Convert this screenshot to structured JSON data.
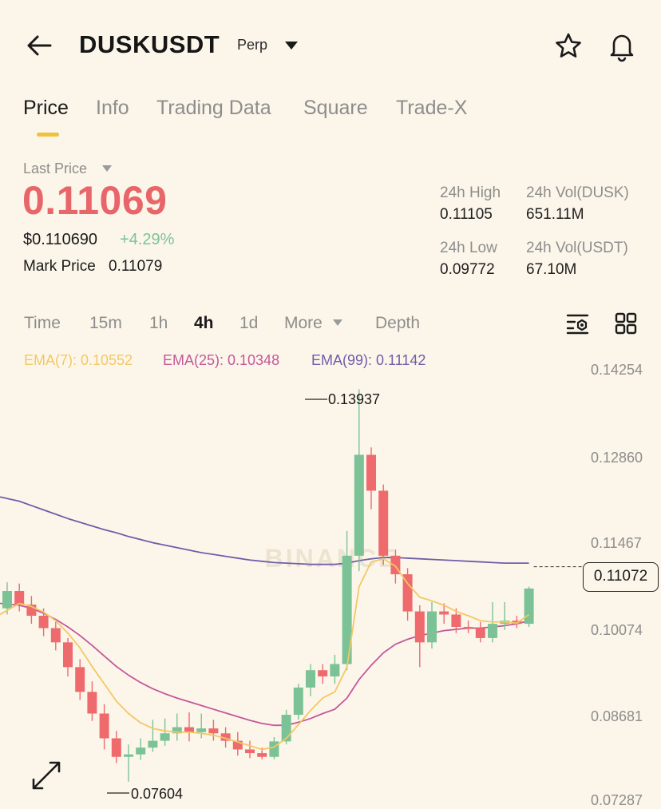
{
  "header": {
    "symbol": "DUSKUSDT",
    "contract_type": "Perp"
  },
  "tabs": [
    {
      "label": "Price",
      "active": true
    },
    {
      "label": "Info"
    },
    {
      "label": "Trading Data"
    },
    {
      "label": "Square"
    },
    {
      "label": "Trade-X"
    }
  ],
  "price": {
    "last_label": "Last Price",
    "last": "0.11069",
    "usd": "$0.110690",
    "change": "+4.29%",
    "mark_label": "Mark Price",
    "mark": "0.11079"
  },
  "stats": {
    "high_label": "24h High",
    "high": "0.11105",
    "vol_base_label": "24h Vol(DUSK)",
    "vol_base": "651.11M",
    "low_label": "24h Low",
    "low": "0.09772",
    "vol_quote_label": "24h Vol(USDT)",
    "vol_quote": "67.10M"
  },
  "timeframes": {
    "time": "Time",
    "m15": "15m",
    "h1": "1h",
    "h4": "4h",
    "d1": "1d",
    "more": "More",
    "depth": "Depth",
    "active": "4h"
  },
  "ema": {
    "ema7": "EMA(7): 0.10552",
    "ema25": "EMA(25): 0.10348",
    "ema99": "EMA(99): 0.11142"
  },
  "colors": {
    "up": "#7bc296",
    "down": "#ee6a6d",
    "accent": "#f0c13a",
    "ema7": "#f2c863",
    "ema25": "#c4579a",
    "ema99": "#6e5ea8"
  },
  "icons": [
    "back-arrow-icon",
    "dropdown-caret-icon",
    "star-icon",
    "bell-icon",
    "chart-settings-icon",
    "grid-layout-icon",
    "expand-icon"
  ],
  "chart_data": {
    "type": "candlestick",
    "y_ticks": [
      "0.14254",
      "0.12860",
      "0.11467",
      "0.10074",
      "0.08681",
      "0.07287"
    ],
    "ylim": [
      0.07287,
      0.14254
    ],
    "high_annotation": "0.13937",
    "low_annotation": "0.07604",
    "current_price": "0.11072",
    "candles": [
      [
        0.104,
        0.1068,
        0.1082,
        0.103
      ],
      [
        0.1068,
        0.1046,
        0.108,
        0.1035
      ],
      [
        0.1046,
        0.1028,
        0.106,
        0.1015
      ],
      [
        0.1028,
        0.1008,
        0.104,
        0.0995
      ],
      [
        0.1008,
        0.0985,
        0.1018,
        0.0972
      ],
      [
        0.0985,
        0.0945,
        0.0992,
        0.093
      ],
      [
        0.0945,
        0.0905,
        0.0958,
        0.0892
      ],
      [
        0.0905,
        0.087,
        0.0922,
        0.0858
      ],
      [
        0.087,
        0.083,
        0.0885,
        0.0812
      ],
      [
        0.083,
        0.08,
        0.0842,
        0.079
      ],
      [
        0.08,
        0.0804,
        0.082,
        0.076
      ],
      [
        0.0804,
        0.0815,
        0.083,
        0.0795
      ],
      [
        0.0815,
        0.0826,
        0.086,
        0.0808
      ],
      [
        0.0826,
        0.0838,
        0.0862,
        0.0818
      ],
      [
        0.0838,
        0.0848,
        0.087,
        0.0826
      ],
      [
        0.0848,
        0.084,
        0.0872,
        0.0825
      ],
      [
        0.084,
        0.0846,
        0.087,
        0.083
      ],
      [
        0.0846,
        0.0838,
        0.086,
        0.0826
      ],
      [
        0.0838,
        0.0826,
        0.0848,
        0.0815
      ],
      [
        0.0826,
        0.0812,
        0.084,
        0.0802
      ],
      [
        0.0812,
        0.0806,
        0.0826,
        0.0798
      ],
      [
        0.0806,
        0.08,
        0.0815,
        0.0796
      ],
      [
        0.08,
        0.0825,
        0.0832,
        0.0796
      ],
      [
        0.0825,
        0.0868,
        0.0876,
        0.082
      ],
      [
        0.0868,
        0.0912,
        0.0918,
        0.086
      ],
      [
        0.0912,
        0.094,
        0.095,
        0.0898
      ],
      [
        0.094,
        0.093,
        0.095,
        0.0918
      ],
      [
        0.093,
        0.095,
        0.0965,
        0.0918
      ],
      [
        0.095,
        0.1125,
        0.1165,
        0.094
      ],
      [
        0.1125,
        0.1288,
        0.1394,
        0.11
      ],
      [
        0.1288,
        0.123,
        0.13,
        0.12
      ],
      [
        0.123,
        0.1125,
        0.124,
        0.111
      ],
      [
        0.1125,
        0.1095,
        0.1135,
        0.108
      ],
      [
        0.1095,
        0.1035,
        0.1105,
        0.102
      ],
      [
        0.1035,
        0.0985,
        0.1045,
        0.0945
      ],
      [
        0.0985,
        0.1035,
        0.105,
        0.0975
      ],
      [
        0.1035,
        0.103,
        0.1048,
        0.1015
      ],
      [
        0.103,
        0.101,
        0.104,
        0.1
      ],
      [
        0.101,
        0.1008,
        0.102,
        0.1
      ],
      [
        0.1008,
        0.0992,
        0.1018,
        0.0985
      ],
      [
        0.0992,
        0.1015,
        0.105,
        0.0985
      ],
      [
        0.1015,
        0.102,
        0.105,
        0.1005
      ],
      [
        0.102,
        0.1015,
        0.1028,
        0.1008
      ],
      [
        0.1015,
        0.1072,
        0.1075,
        0.101
      ]
    ],
    "ema7": [
      0.103,
      0.1048,
      0.1043,
      0.1034,
      0.102,
      0.1,
      0.0976,
      0.0946,
      0.0918,
      0.089,
      0.087,
      0.0855,
      0.0846,
      0.0842,
      0.084,
      0.084,
      0.0838,
      0.0835,
      0.083,
      0.0824,
      0.0818,
      0.0812,
      0.0816,
      0.083,
      0.0852,
      0.0875,
      0.0895,
      0.0905,
      0.0945,
      0.1075,
      0.1115,
      0.112,
      0.1108,
      0.108,
      0.1058,
      0.1052,
      0.1045,
      0.1035,
      0.1028,
      0.102,
      0.1018,
      0.1018,
      0.1016,
      0.103
    ],
    "ema25": [
      0.1048,
      0.1045,
      0.104,
      0.1032,
      0.1022,
      0.101,
      0.0996,
      0.098,
      0.0963,
      0.0946,
      0.0932,
      0.092,
      0.091,
      0.0902,
      0.0895,
      0.0889,
      0.0883,
      0.0877,
      0.0871,
      0.0865,
      0.0859,
      0.0854,
      0.0851,
      0.0851,
      0.0856,
      0.0862,
      0.087,
      0.0877,
      0.0895,
      0.0925,
      0.0948,
      0.0968,
      0.0982,
      0.099,
      0.0996,
      0.1,
      0.1004,
      0.1006,
      0.1008,
      0.1008,
      0.101,
      0.1012,
      0.1015,
      0.102
    ],
    "ema99": [
      0.122,
      0.1213,
      0.1206,
      0.1199,
      0.1192,
      0.1185,
      0.1179,
      0.1173,
      0.1167,
      0.1162,
      0.1156,
      0.1151,
      0.1146,
      0.1142,
      0.1138,
      0.1134,
      0.113,
      0.1127,
      0.1124,
      0.1121,
      0.1118,
      0.1116,
      0.1114,
      0.1113,
      0.1112,
      0.1111,
      0.1111,
      0.1111,
      0.1113,
      0.1117,
      0.112,
      0.1122,
      0.1122,
      0.1121,
      0.112,
      0.1119,
      0.1118,
      0.1117,
      0.1116,
      0.1115,
      0.1114,
      0.1113,
      0.1113,
      0.1113
    ]
  }
}
